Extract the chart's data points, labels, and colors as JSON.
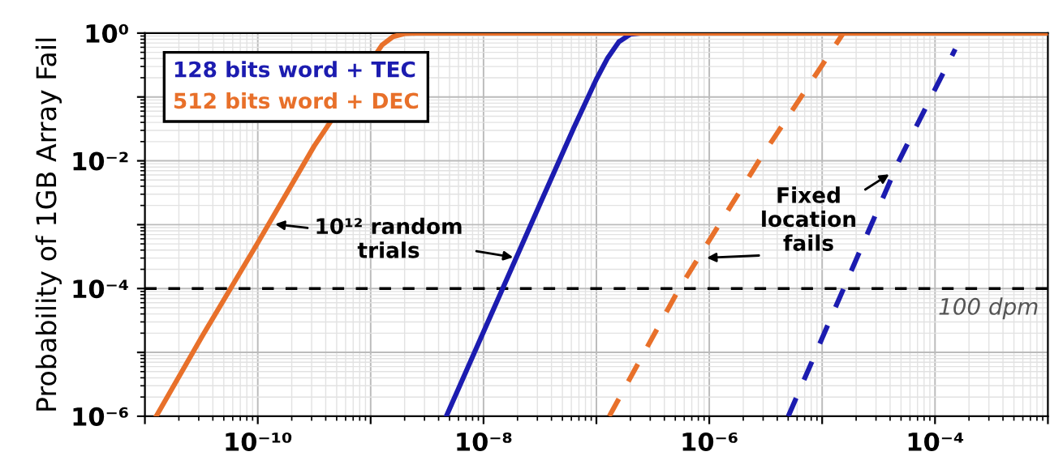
{
  "chart_data": {
    "type": "line",
    "ylabel": "Probability of 1GB Array Fail",
    "log": "xy",
    "grid": true,
    "legend": "top left",
    "xlim": [
      1e-11,
      0.001
    ],
    "ylim": [
      1e-06,
      1
    ],
    "xticks": [
      {
        "value": 1e-11,
        "label": null
      },
      {
        "value": 1e-10,
        "label": "10⁻¹⁰"
      },
      {
        "value": 1e-09,
        "label": null
      },
      {
        "value": 1e-08,
        "label": "10⁻⁸"
      },
      {
        "value": 1e-07,
        "label": null
      },
      {
        "value": 1e-06,
        "label": "10⁻⁶"
      },
      {
        "value": 1e-05,
        "label": null
      },
      {
        "value": 0.0001,
        "label": "10⁻⁴"
      },
      {
        "value": 0.001,
        "label": null
      }
    ],
    "yticks": [
      {
        "value": 1e-06,
        "label": "10⁻⁶"
      },
      {
        "value": 1e-05,
        "label": null
      },
      {
        "value": 0.0001,
        "label": "10⁻⁴"
      },
      {
        "value": 0.001,
        "label": null
      },
      {
        "value": 0.01,
        "label": "10⁻²"
      },
      {
        "value": 0.1,
        "label": null
      },
      {
        "value": 1,
        "label": "10⁰"
      }
    ],
    "series": [
      {
        "name": "128 bits word + TEC",
        "color": "#1c1cb0",
        "line_style": "solid",
        "x": [
          4.68e-09,
          1e-08,
          3.16e-08,
          6.31e-08,
          1e-07,
          1.26e-07,
          1.58e-07,
          2e-07,
          2.51e-07
        ],
        "values": [
          1e-06,
          2.1e-05,
          0.0021,
          0.033,
          0.19,
          0.41,
          0.73,
          0.96,
          1
        ]
      },
      {
        "name": "512 bits word + DEC",
        "color": "#e8702a",
        "line_style": "solid",
        "x": [
          1.26e-11,
          3.16e-11,
          1e-10,
          3.16e-10,
          1.26e-09,
          1.58e-09,
          2e-09,
          2.51e-09,
          3.16e-09,
          0.001
        ],
        "values": [
          1e-06,
          1.7e-05,
          0.00052,
          0.017,
          0.65,
          0.88,
          0.98,
          1,
          1,
          1
        ]
      },
      {
        "color": "#e8702a",
        "line_style": "dashed",
        "x": [
          1.3e-07,
          5.42e-07,
          2.75e-06,
          1.54e-05
        ],
        "values": [
          1e-06,
          0.0001,
          0.01,
          1
        ]
      },
      {
        "color": "#1c1cb0",
        "line_style": "dashed",
        "x": [
          5.01e-06,
          1.55e-05,
          4.79e-05,
          0.000151
        ],
        "values": [
          1e-06,
          0.0001,
          0.01,
          0.56
        ]
      }
    ],
    "ref_lines": [
      {
        "axis": "y",
        "value": 0.0001,
        "label": "100 dpm",
        "color": "#000000",
        "line_style": "dashed"
      }
    ],
    "annotations": [
      {
        "text": "10¹² random\ntrials",
        "x": 2e-08,
        "y": 0.0003
      },
      {
        "text": "Fixed\nlocation\nfails",
        "x": 4.4e-05,
        "y": 0.007
      }
    ]
  }
}
